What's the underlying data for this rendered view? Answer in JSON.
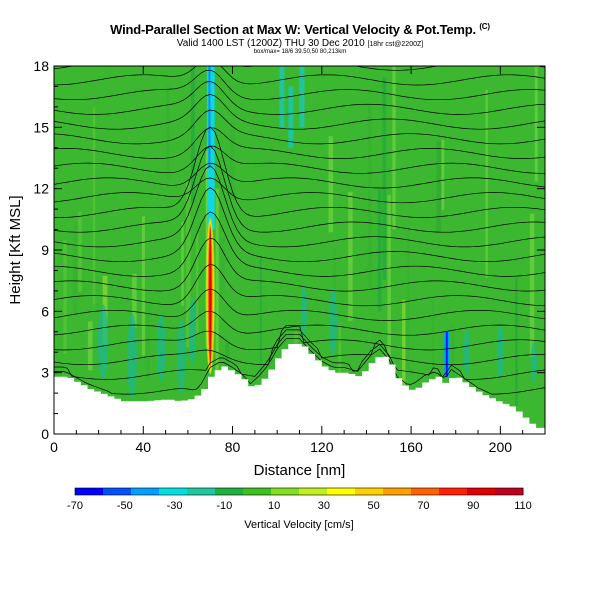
{
  "header": {
    "title": "Wind-Parallel Section at Max W: Vertical Velocity & Pot.Temp.",
    "title_mark": "(C)",
    "subtitle": "Valid 1400 LST (1200Z) THU 30 Dec 2010",
    "subtitle_note": "[18hr cst@2200Z]",
    "subtitle2": "box/max= 18/6 39.50,50 80,213km"
  },
  "chart_data": {
    "type": "heatmap",
    "xlabel": "Distance [nm]",
    "ylabel": "Height [Kft MSL]",
    "xlim": [
      0,
      220
    ],
    "ylim": [
      0,
      18
    ],
    "xticks": [
      "0",
      "40",
      "80",
      "120",
      "160",
      "200"
    ],
    "yticks": [
      "0",
      "3",
      "6",
      "9",
      "12",
      "15",
      "18"
    ],
    "colorbar": {
      "label": "Vertical Velocity [cm/s]",
      "ticks": [
        "-70",
        "-50",
        "-30",
        "-10",
        "10",
        "30",
        "50",
        "70",
        "90",
        "110"
      ],
      "colors": [
        "#0000ff",
        "#0050ff",
        "#00a0ff",
        "#00e0e0",
        "#20c8a0",
        "#20b040",
        "#40c020",
        "#80e020",
        "#c0f020",
        "#ffff00",
        "#ffd000",
        "#ffa000",
        "#ff6000",
        "#ff2000",
        "#e00000",
        "#c00020"
      ]
    },
    "max_updraft": {
      "x": 70,
      "y_range": [
        3.5,
        10
      ],
      "value_cm_s": 110
    },
    "downdraft": {
      "x": 176,
      "y_range": [
        2.8,
        5
      ],
      "value_cm_s": -70
    },
    "terrain_kft": [
      [
        0,
        2.8
      ],
      [
        5,
        2.8
      ],
      [
        10,
        2.5
      ],
      [
        15,
        2.2
      ],
      [
        20,
        2.0
      ],
      [
        25,
        1.8
      ],
      [
        30,
        1.6
      ],
      [
        40,
        1.6
      ],
      [
        50,
        1.7
      ],
      [
        55,
        1.6
      ],
      [
        60,
        1.7
      ],
      [
        65,
        2.0
      ],
      [
        68,
        2.6
      ],
      [
        70,
        3.0
      ],
      [
        75,
        3.3
      ],
      [
        80,
        3.0
      ],
      [
        85,
        2.6
      ],
      [
        88,
        2.2
      ],
      [
        93,
        2.7
      ],
      [
        97,
        3.3
      ],
      [
        100,
        3.9
      ],
      [
        104,
        4.4
      ],
      [
        110,
        4.4
      ],
      [
        115,
        3.8
      ],
      [
        120,
        3.3
      ],
      [
        125,
        3.0
      ],
      [
        130,
        3.0
      ],
      [
        136,
        2.8
      ],
      [
        142,
        3.6
      ],
      [
        146,
        3.9
      ],
      [
        150,
        3.4
      ],
      [
        154,
        2.5
      ],
      [
        160,
        2.1
      ],
      [
        166,
        2.6
      ],
      [
        171,
        2.8
      ],
      [
        175,
        2.4
      ],
      [
        178,
        2.9
      ],
      [
        182,
        2.6
      ],
      [
        190,
        2.0
      ],
      [
        198,
        1.6
      ],
      [
        205,
        1.3
      ],
      [
        210,
        0.8
      ],
      [
        215,
        0.3
      ],
      [
        220,
        0.3
      ]
    ]
  }
}
